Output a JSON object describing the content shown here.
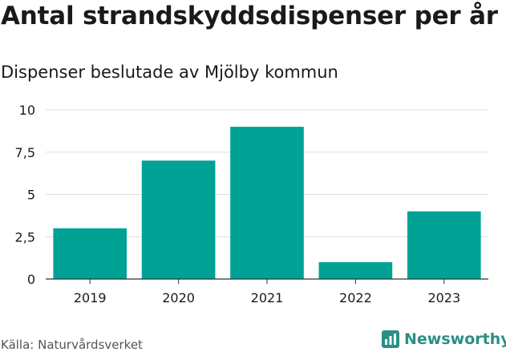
{
  "title": "Antal strandskyddsdispenser per år",
  "subtitle": "Dispenser beslutade av Mjölby kommun",
  "source": "Källa: Naturvårdsverket",
  "brand": "Newsworthy",
  "colors": {
    "bar": "#00a296",
    "grid": "#dddddd",
    "axis": "#333333",
    "text": "#1a1a1a",
    "brand": "#2a8f84"
  },
  "chart_data": {
    "type": "bar",
    "title": "Antal strandskyddsdispenser per år",
    "subtitle": "Dispenser beslutade av Mjölby kommun",
    "categories": [
      "2019",
      "2020",
      "2021",
      "2022",
      "2023"
    ],
    "values": [
      3,
      7,
      9,
      1,
      4
    ],
    "yticks": [
      0,
      2.5,
      5,
      7.5,
      10
    ],
    "ytick_labels": [
      "0",
      "2,5",
      "5",
      "7,5",
      "10"
    ],
    "ylim": [
      0,
      10
    ],
    "xlabel": "",
    "ylabel": "",
    "grid": true,
    "legend": "none"
  }
}
